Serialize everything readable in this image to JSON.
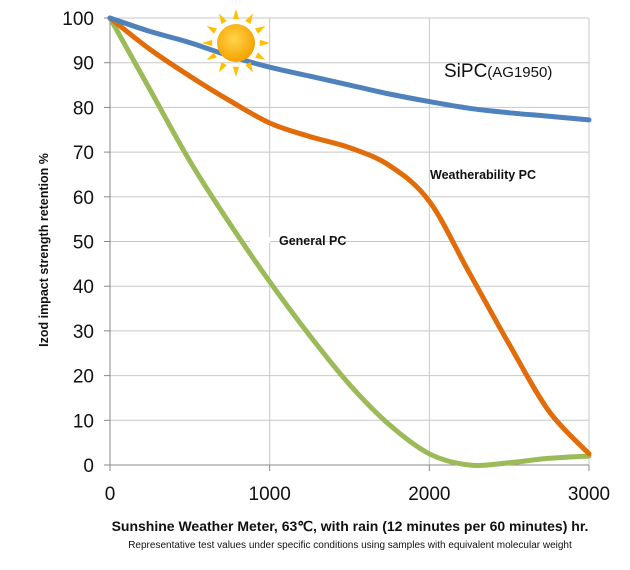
{
  "chart_data": {
    "type": "line",
    "title": "",
    "xlabel": "Sunshine Weather Meter, 63℃, with rain (12 minutes per 60 minutes) hr.",
    "note": "Representative test values under specific conditions using samples with equivalent molecular weight",
    "ylabel": "Izod impact strength retention %",
    "xlim": [
      0,
      3000
    ],
    "ylim": [
      0,
      100
    ],
    "x_ticks": [
      "0",
      "1000",
      "2000",
      "3000"
    ],
    "y_ticks": [
      "0",
      "10",
      "20",
      "30",
      "40",
      "50",
      "60",
      "70",
      "80",
      "90",
      "100"
    ],
    "grid": true,
    "legend": "none (inline labels)",
    "series": [
      {
        "name": "SiPC(AG1950)",
        "name_main": "SiPC",
        "name_sub": "(AG1950)",
        "color": "#4f81bd",
        "x": [
          0,
          250,
          500,
          750,
          1000,
          1250,
          1500,
          1750,
          2000,
          2250,
          2500,
          2750,
          3000
        ],
        "y": [
          100,
          97,
          94.5,
          91.5,
          89,
          87,
          85,
          83,
          81.3,
          79.8,
          78.8,
          78,
          77.2
        ]
      },
      {
        "name": "Weatherability PC",
        "color": "#e36c0a",
        "x": [
          0,
          250,
          500,
          750,
          1000,
          1250,
          1500,
          1750,
          2000,
          2250,
          2500,
          2750,
          3000
        ],
        "y": [
          100,
          93,
          87,
          81.5,
          76.5,
          73.5,
          71,
          67,
          59,
          43,
          27,
          12,
          2.5
        ]
      },
      {
        "name": "General PC",
        "color": "#9bbb59",
        "x": [
          0,
          250,
          500,
          750,
          1000,
          1250,
          1500,
          1750,
          2000,
          2250,
          2500,
          2750,
          3000
        ],
        "y": [
          100,
          84,
          68,
          54,
          41,
          29,
          18,
          9,
          2.5,
          0,
          0.5,
          1.5,
          2
        ]
      }
    ]
  },
  "icons": {
    "sun": "sun-icon"
  }
}
